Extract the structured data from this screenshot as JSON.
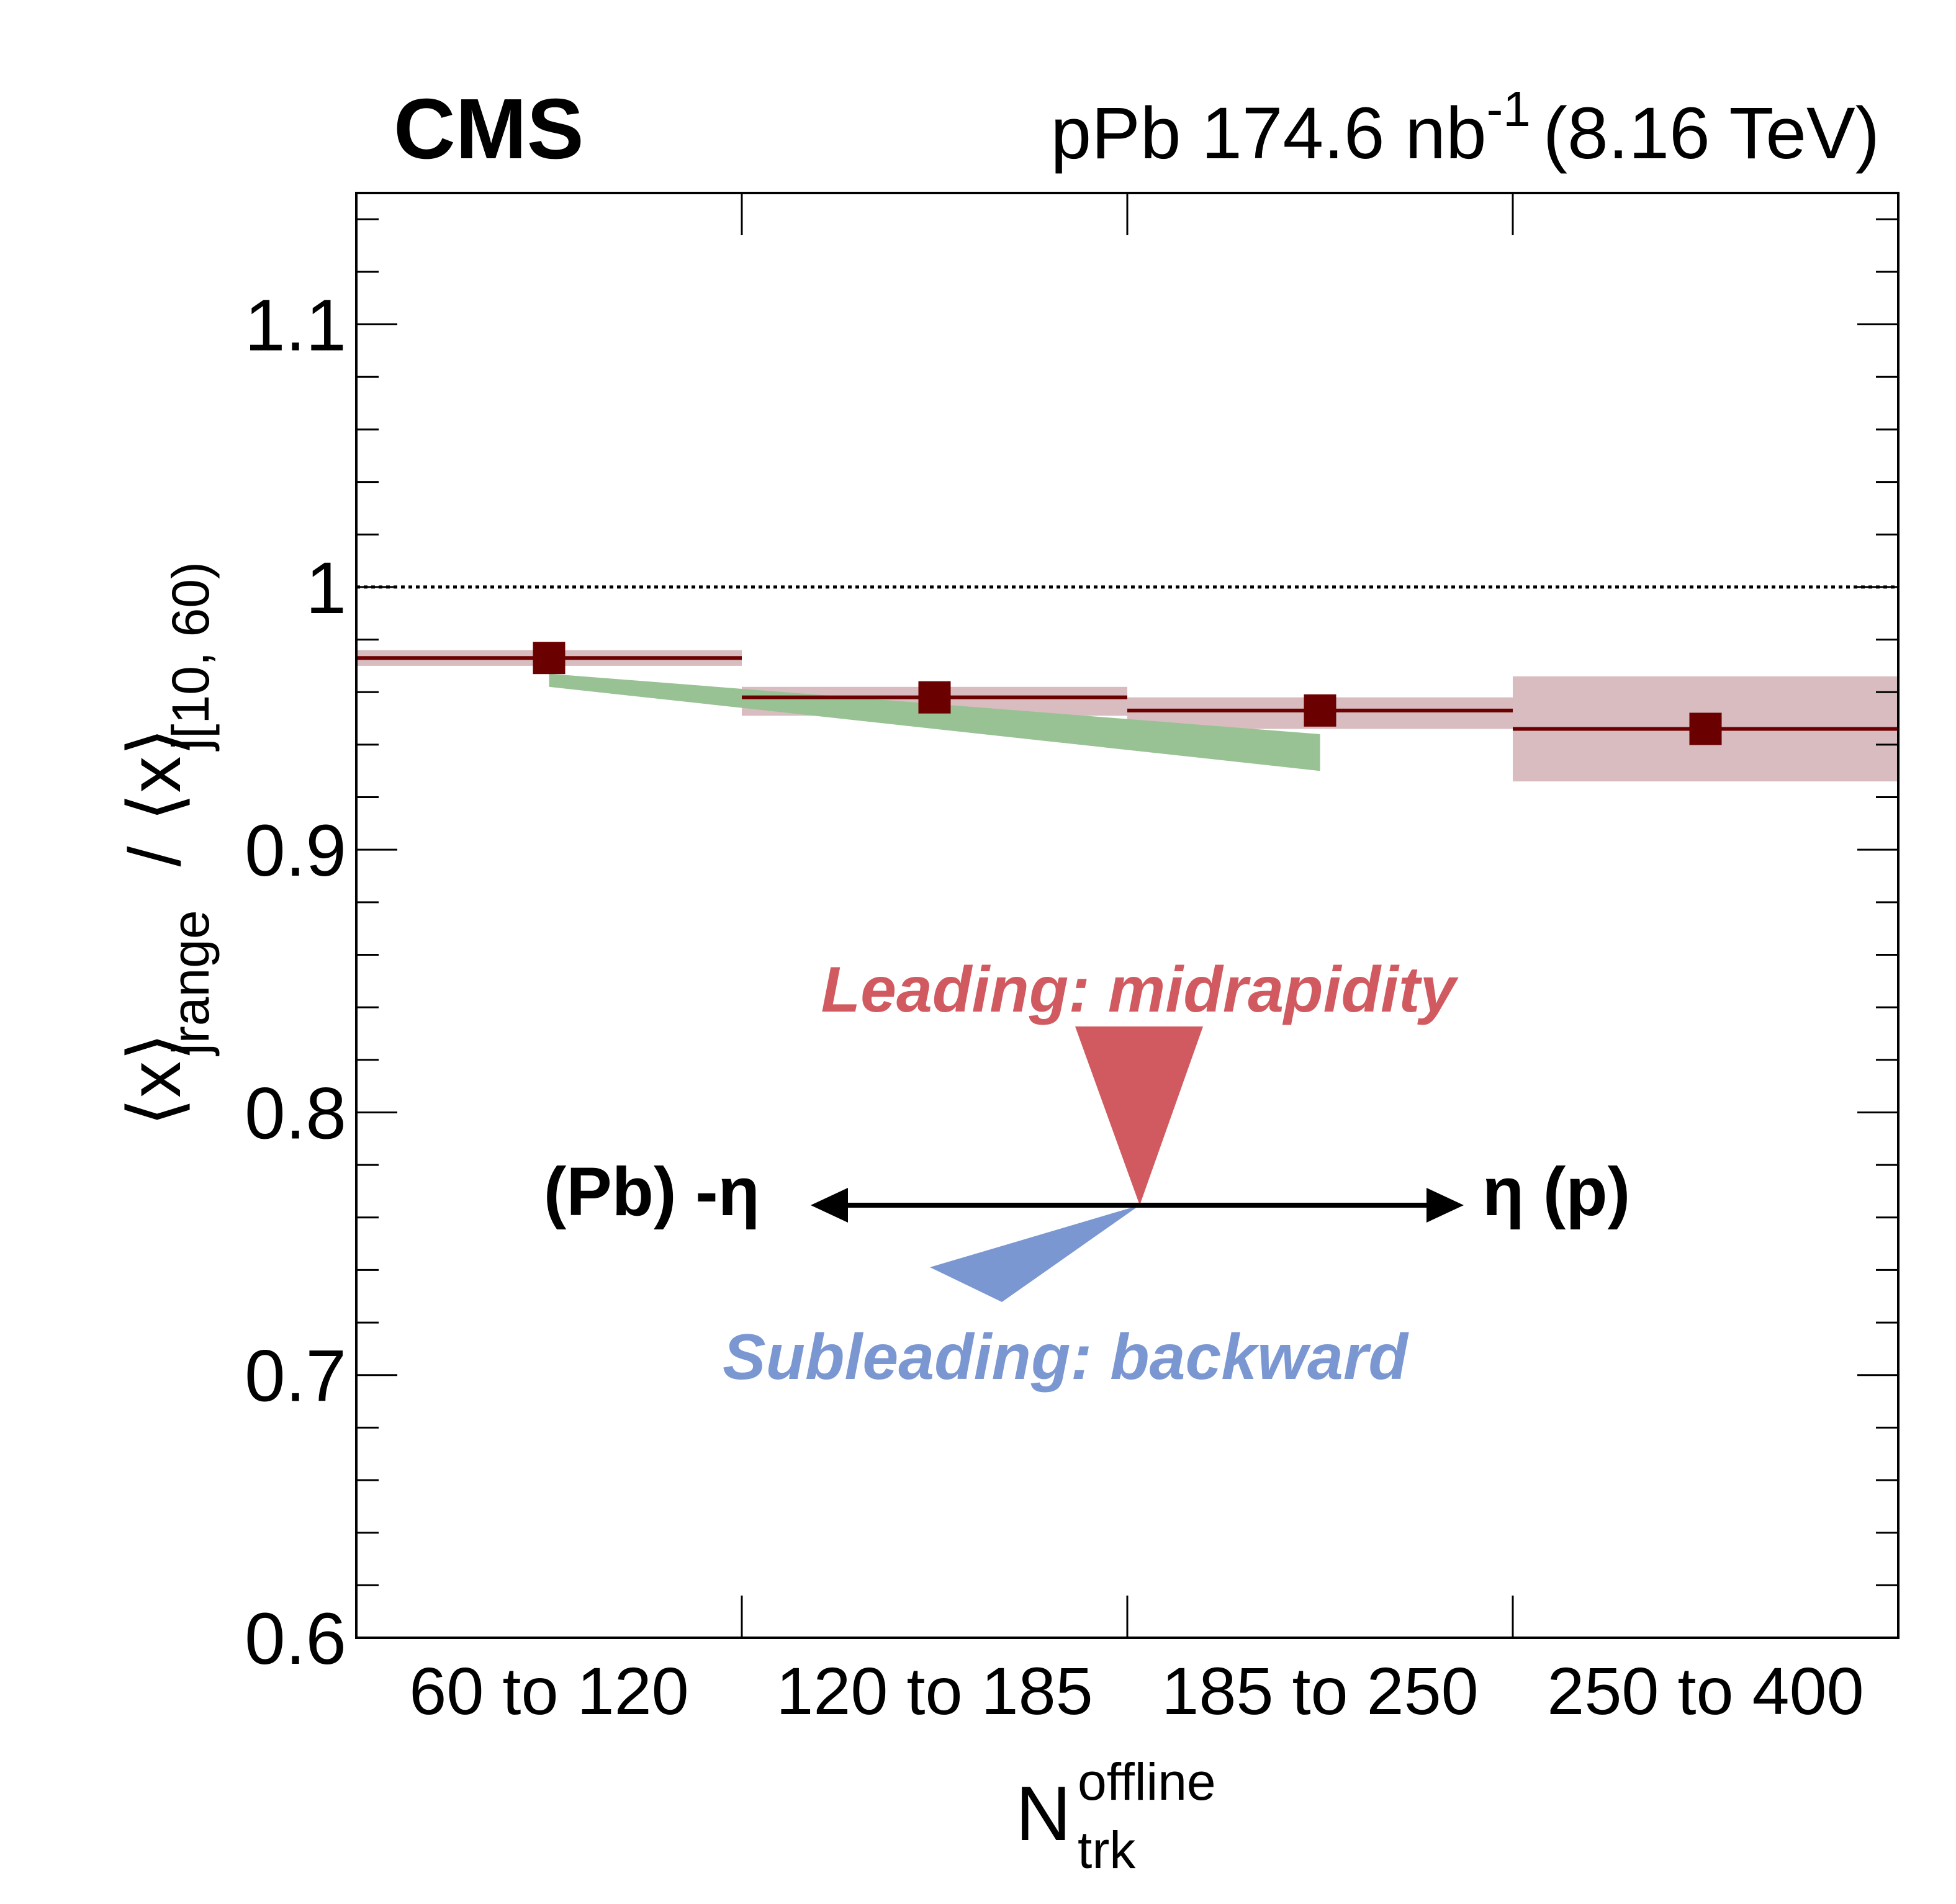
{
  "header": {
    "experiment": "CMS",
    "lumi_prefix": "pPb 174.6 nb",
    "lumi_exponent": "-1",
    "energy": "(8.16 TeV)"
  },
  "axes": {
    "x_main": "N",
    "x_sup": "offline",
    "x_sub": "trk",
    "y_parts": {
      "bracket_open": "⟨",
      "x": "x",
      "bracket_close": "⟩",
      "sub_j": "j",
      "sub_range": "range",
      "slash": "/",
      "sub_ref": "[10, 60)"
    }
  },
  "annotation": {
    "leading": "Leading: midrapidity",
    "subleading": "Subleading: backward",
    "left_label": "(Pb) -η",
    "right_label": "η (p)"
  },
  "colors": {
    "data": "#6b0000",
    "syst_band": "#d8bcbf",
    "model_band": "#98c294",
    "leading": "#d05a5f",
    "subleading": "#7b97d2"
  },
  "chart_data": {
    "type": "scatter",
    "categories": [
      "60 to 120",
      "120 to 185",
      "185 to 250",
      "250 to 400"
    ],
    "ylim": [
      0.6,
      1.15
    ],
    "yticks": [
      "0.6",
      "0.7",
      "0.8",
      "0.9",
      "1",
      "1.1"
    ],
    "reference_line": 1.0,
    "series": [
      {
        "values": [
          0.973,
          0.958,
          0.953,
          0.946
        ],
        "syst_low": [
          0.97,
          0.951,
          0.946,
          0.926
        ],
        "syst_high": [
          0.976,
          0.962,
          0.958,
          0.966
        ]
      }
    ],
    "model_band": {
      "x_categories": [
        "60 to 120",
        "185 to 250"
      ],
      "low": [
        0.962,
        0.93
      ],
      "high": [
        0.967,
        0.944
      ]
    }
  }
}
